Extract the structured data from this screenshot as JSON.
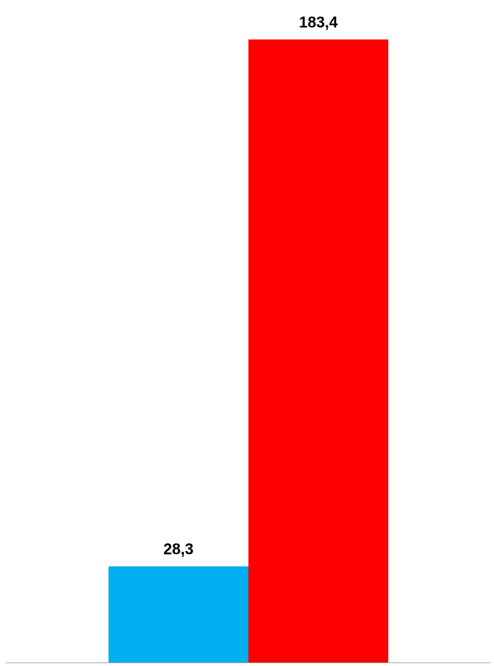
{
  "chart_data": {
    "type": "bar",
    "categories": [
      null
    ],
    "series": [
      {
        "color": "#00b0f0",
        "values": [
          28.3
        ],
        "value_labels": [
          "28,3"
        ]
      },
      {
        "color": "#ff0000",
        "values": [
          183.4
        ],
        "value_labels": [
          "183,4"
        ]
      }
    ]
  }
}
